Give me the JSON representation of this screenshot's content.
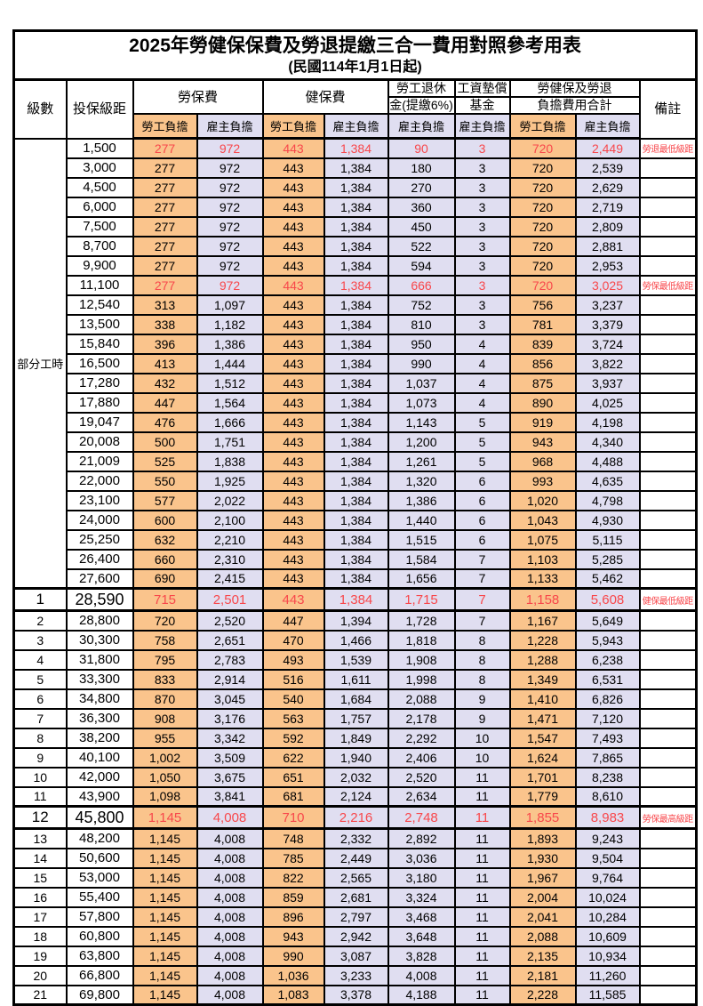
{
  "title": "2025年勞健保保費及勞退提繳三合一費用對照參考用表",
  "subtitle": "(民國114年1月1日起)",
  "colors": {
    "employee_column_bg": "#FAC48C",
    "employer_column_bg": "#E0DEF1",
    "highlight_text": "#F8474B",
    "border": "#000000"
  },
  "table": {
    "headers": {
      "level": "級數",
      "salary_bracket": "投保級距",
      "labor_insurance": "勞保費",
      "health_insurance": "健保費",
      "pension_line1": "勞工退休",
      "pension_line2": "金(提繳6%)",
      "wage_fund_line1": "工資墊償",
      "wage_fund_line2": "基金",
      "total_line1": "勞健保及勞退",
      "total_line2": "負擔費用合計",
      "remark": "備註",
      "employee": "勞工負擔",
      "employer": "雇主負擔"
    },
    "part_time_label": "部分工時",
    "part_time_rowspan": 23,
    "rows": [
      {
        "level": "",
        "bracket": "1,500",
        "values": [
          "277",
          "972",
          "443",
          "1,384",
          "90",
          "3",
          "720",
          "2,449"
        ],
        "remark": "勞退最低級距",
        "red": true
      },
      {
        "level": "",
        "bracket": "3,000",
        "values": [
          "277",
          "972",
          "443",
          "1,384",
          "180",
          "3",
          "720",
          "2,539"
        ],
        "remark": ""
      },
      {
        "level": "",
        "bracket": "4,500",
        "values": [
          "277",
          "972",
          "443",
          "1,384",
          "270",
          "3",
          "720",
          "2,629"
        ],
        "remark": ""
      },
      {
        "level": "",
        "bracket": "6,000",
        "values": [
          "277",
          "972",
          "443",
          "1,384",
          "360",
          "3",
          "720",
          "2,719"
        ],
        "remark": ""
      },
      {
        "level": "",
        "bracket": "7,500",
        "values": [
          "277",
          "972",
          "443",
          "1,384",
          "450",
          "3",
          "720",
          "2,809"
        ],
        "remark": ""
      },
      {
        "level": "",
        "bracket": "8,700",
        "values": [
          "277",
          "972",
          "443",
          "1,384",
          "522",
          "3",
          "720",
          "2,881"
        ],
        "remark": ""
      },
      {
        "level": "",
        "bracket": "9,900",
        "values": [
          "277",
          "972",
          "443",
          "1,384",
          "594",
          "3",
          "720",
          "2,953"
        ],
        "remark": ""
      },
      {
        "level": "",
        "bracket": "11,100",
        "values": [
          "277",
          "972",
          "443",
          "1,384",
          "666",
          "3",
          "720",
          "3,025"
        ],
        "remark": "勞保最低級距",
        "red": true
      },
      {
        "level": "",
        "bracket": "12,540",
        "values": [
          "313",
          "1,097",
          "443",
          "1,384",
          "752",
          "3",
          "756",
          "3,237"
        ],
        "remark": ""
      },
      {
        "level": "",
        "bracket": "13,500",
        "values": [
          "338",
          "1,182",
          "443",
          "1,384",
          "810",
          "3",
          "781",
          "3,379"
        ],
        "remark": ""
      },
      {
        "level": "",
        "bracket": "15,840",
        "values": [
          "396",
          "1,386",
          "443",
          "1,384",
          "950",
          "4",
          "839",
          "3,724"
        ],
        "remark": ""
      },
      {
        "level": "",
        "bracket": "16,500",
        "values": [
          "413",
          "1,444",
          "443",
          "1,384",
          "990",
          "4",
          "856",
          "3,822"
        ],
        "remark": ""
      },
      {
        "level": "",
        "bracket": "17,280",
        "values": [
          "432",
          "1,512",
          "443",
          "1,384",
          "1,037",
          "4",
          "875",
          "3,937"
        ],
        "remark": ""
      },
      {
        "level": "",
        "bracket": "17,880",
        "values": [
          "447",
          "1,564",
          "443",
          "1,384",
          "1,073",
          "4",
          "890",
          "4,025"
        ],
        "remark": ""
      },
      {
        "level": "",
        "bracket": "19,047",
        "values": [
          "476",
          "1,666",
          "443",
          "1,384",
          "1,143",
          "5",
          "919",
          "4,198"
        ],
        "remark": ""
      },
      {
        "level": "",
        "bracket": "20,008",
        "values": [
          "500",
          "1,751",
          "443",
          "1,384",
          "1,200",
          "5",
          "943",
          "4,340"
        ],
        "remark": ""
      },
      {
        "level": "",
        "bracket": "21,009",
        "values": [
          "525",
          "1,838",
          "443",
          "1,384",
          "1,261",
          "5",
          "968",
          "4,488"
        ],
        "remark": ""
      },
      {
        "level": "",
        "bracket": "22,000",
        "values": [
          "550",
          "1,925",
          "443",
          "1,384",
          "1,320",
          "6",
          "993",
          "4,635"
        ],
        "remark": ""
      },
      {
        "level": "",
        "bracket": "23,100",
        "values": [
          "577",
          "2,022",
          "443",
          "1,384",
          "1,386",
          "6",
          "1,020",
          "4,798"
        ],
        "remark": ""
      },
      {
        "level": "",
        "bracket": "24,000",
        "values": [
          "600",
          "2,100",
          "443",
          "1,384",
          "1,440",
          "6",
          "1,043",
          "4,930"
        ],
        "remark": ""
      },
      {
        "level": "",
        "bracket": "25,250",
        "values": [
          "632",
          "2,210",
          "443",
          "1,384",
          "1,515",
          "6",
          "1,075",
          "5,115"
        ],
        "remark": ""
      },
      {
        "level": "",
        "bracket": "26,400",
        "values": [
          "660",
          "2,310",
          "443",
          "1,384",
          "1,584",
          "7",
          "1,103",
          "5,285"
        ],
        "remark": ""
      },
      {
        "level": "",
        "bracket": "27,600",
        "values": [
          "690",
          "2,415",
          "443",
          "1,384",
          "1,656",
          "7",
          "1,133",
          "5,462"
        ],
        "remark": ""
      },
      {
        "level": "1",
        "bracket": "28,590",
        "values": [
          "715",
          "2,501",
          "443",
          "1,384",
          "1,715",
          "7",
          "1,158",
          "5,608"
        ],
        "remark": "健保最低級距",
        "red": true,
        "big": true
      },
      {
        "level": "2",
        "bracket": "28,800",
        "values": [
          "720",
          "2,520",
          "447",
          "1,394",
          "1,728",
          "7",
          "1,167",
          "5,649"
        ],
        "remark": ""
      },
      {
        "level": "3",
        "bracket": "30,300",
        "values": [
          "758",
          "2,651",
          "470",
          "1,466",
          "1,818",
          "8",
          "1,228",
          "5,943"
        ],
        "remark": ""
      },
      {
        "level": "4",
        "bracket": "31,800",
        "values": [
          "795",
          "2,783",
          "493",
          "1,539",
          "1,908",
          "8",
          "1,288",
          "6,238"
        ],
        "remark": ""
      },
      {
        "level": "5",
        "bracket": "33,300",
        "values": [
          "833",
          "2,914",
          "516",
          "1,611",
          "1,998",
          "8",
          "1,349",
          "6,531"
        ],
        "remark": ""
      },
      {
        "level": "6",
        "bracket": "34,800",
        "values": [
          "870",
          "3,045",
          "540",
          "1,684",
          "2,088",
          "9",
          "1,410",
          "6,826"
        ],
        "remark": ""
      },
      {
        "level": "7",
        "bracket": "36,300",
        "values": [
          "908",
          "3,176",
          "563",
          "1,757",
          "2,178",
          "9",
          "1,471",
          "7,120"
        ],
        "remark": ""
      },
      {
        "level": "8",
        "bracket": "38,200",
        "values": [
          "955",
          "3,342",
          "592",
          "1,849",
          "2,292",
          "10",
          "1,547",
          "7,493"
        ],
        "remark": ""
      },
      {
        "level": "9",
        "bracket": "40,100",
        "values": [
          "1,002",
          "3,509",
          "622",
          "1,940",
          "2,406",
          "10",
          "1,624",
          "7,865"
        ],
        "remark": ""
      },
      {
        "level": "10",
        "bracket": "42,000",
        "values": [
          "1,050",
          "3,675",
          "651",
          "2,032",
          "2,520",
          "11",
          "1,701",
          "8,238"
        ],
        "remark": ""
      },
      {
        "level": "11",
        "bracket": "43,900",
        "values": [
          "1,098",
          "3,841",
          "681",
          "2,124",
          "2,634",
          "11",
          "1,779",
          "8,610"
        ],
        "remark": ""
      },
      {
        "level": "12",
        "bracket": "45,800",
        "values": [
          "1,145",
          "4,008",
          "710",
          "2,216",
          "2,748",
          "11",
          "1,855",
          "8,983"
        ],
        "remark": "勞保最高級距",
        "red": true,
        "big": true
      },
      {
        "level": "13",
        "bracket": "48,200",
        "values": [
          "1,145",
          "4,008",
          "748",
          "2,332",
          "2,892",
          "11",
          "1,893",
          "9,243"
        ],
        "remark": ""
      },
      {
        "level": "14",
        "bracket": "50,600",
        "values": [
          "1,145",
          "4,008",
          "785",
          "2,449",
          "3,036",
          "11",
          "1,930",
          "9,504"
        ],
        "remark": ""
      },
      {
        "level": "15",
        "bracket": "53,000",
        "values": [
          "1,145",
          "4,008",
          "822",
          "2,565",
          "3,180",
          "11",
          "1,967",
          "9,764"
        ],
        "remark": ""
      },
      {
        "level": "16",
        "bracket": "55,400",
        "values": [
          "1,145",
          "4,008",
          "859",
          "2,681",
          "3,324",
          "11",
          "2,004",
          "10,024"
        ],
        "remark": ""
      },
      {
        "level": "17",
        "bracket": "57,800",
        "values": [
          "1,145",
          "4,008",
          "896",
          "2,797",
          "3,468",
          "11",
          "2,041",
          "10,284"
        ],
        "remark": ""
      },
      {
        "level": "18",
        "bracket": "60,800",
        "values": [
          "1,145",
          "4,008",
          "943",
          "2,942",
          "3,648",
          "11",
          "2,088",
          "10,609"
        ],
        "remark": ""
      },
      {
        "level": "19",
        "bracket": "63,800",
        "values": [
          "1,145",
          "4,008",
          "990",
          "3,087",
          "3,828",
          "11",
          "2,135",
          "10,934"
        ],
        "remark": ""
      },
      {
        "level": "20",
        "bracket": "66,800",
        "values": [
          "1,145",
          "4,008",
          "1,036",
          "3,233",
          "4,008",
          "11",
          "2,181",
          "11,260"
        ],
        "remark": ""
      },
      {
        "level": "21",
        "bracket": "69,800",
        "values": [
          "1,145",
          "4,008",
          "1,083",
          "3,378",
          "4,188",
          "11",
          "2,228",
          "11,585"
        ],
        "remark": ""
      }
    ]
  }
}
